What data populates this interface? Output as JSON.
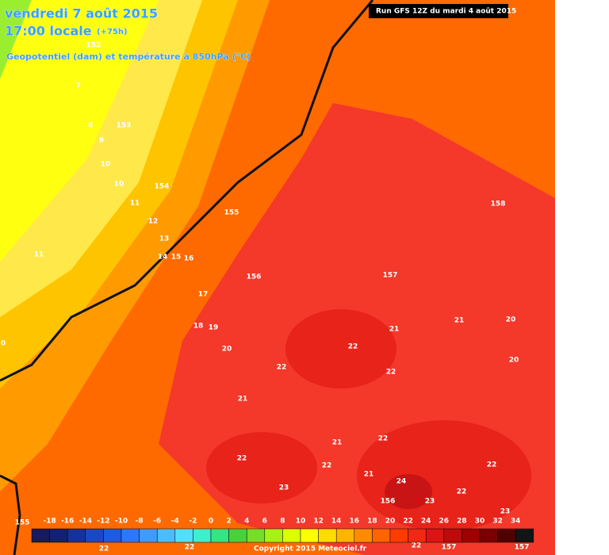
{
  "header": {
    "date": "vendredi 7 août 2015",
    "time": "17:00 locale",
    "lead": "(+75h)",
    "subtitle": "Geopotentiel (dam) et température à 850hPa (°C)"
  },
  "run_label": "Run GFS 12Z du mardi 4 août 2015",
  "contour_labels": [
    152,
    7,
    8,
    153,
    9,
    10,
    10,
    154,
    11,
    155,
    12,
    13,
    11,
    14,
    15,
    16,
    156,
    157,
    158,
    17,
    18,
    19,
    20,
    21,
    20,
    21,
    22,
    22,
    22,
    20,
    21,
    21,
    22,
    22,
    22,
    21,
    24,
    22,
    23,
    22,
    23,
    156,
    23,
    155,
    0,
    22,
    22,
    22,
    157,
    157
  ],
  "legend": {
    "labels": [
      -18,
      -16,
      -14,
      -12,
      -10,
      -8,
      -6,
      -4,
      -2,
      0,
      2,
      4,
      6,
      8,
      10,
      12,
      14,
      16,
      18,
      20,
      22,
      24,
      26,
      28,
      30,
      32,
      34
    ],
    "colors": [
      "#1a1a5a",
      "#142070",
      "#1a2ea0",
      "#1e44c8",
      "#1e5ae6",
      "#2a78ff",
      "#3c9cff",
      "#46beff",
      "#50e0ff",
      "#3cf0c8",
      "#32e682",
      "#46d23c",
      "#78dc28",
      "#aaf014",
      "#dcff00",
      "#ffff00",
      "#ffdc00",
      "#ffb400",
      "#ff8c00",
      "#ff6400",
      "#ff3c00",
      "#f02814",
      "#dc1414",
      "#be0a0a",
      "#a00000",
      "#780000",
      "#500000",
      "#141414"
    ]
  },
  "copyright": "Copyright 2015 Meteociel.fr"
}
